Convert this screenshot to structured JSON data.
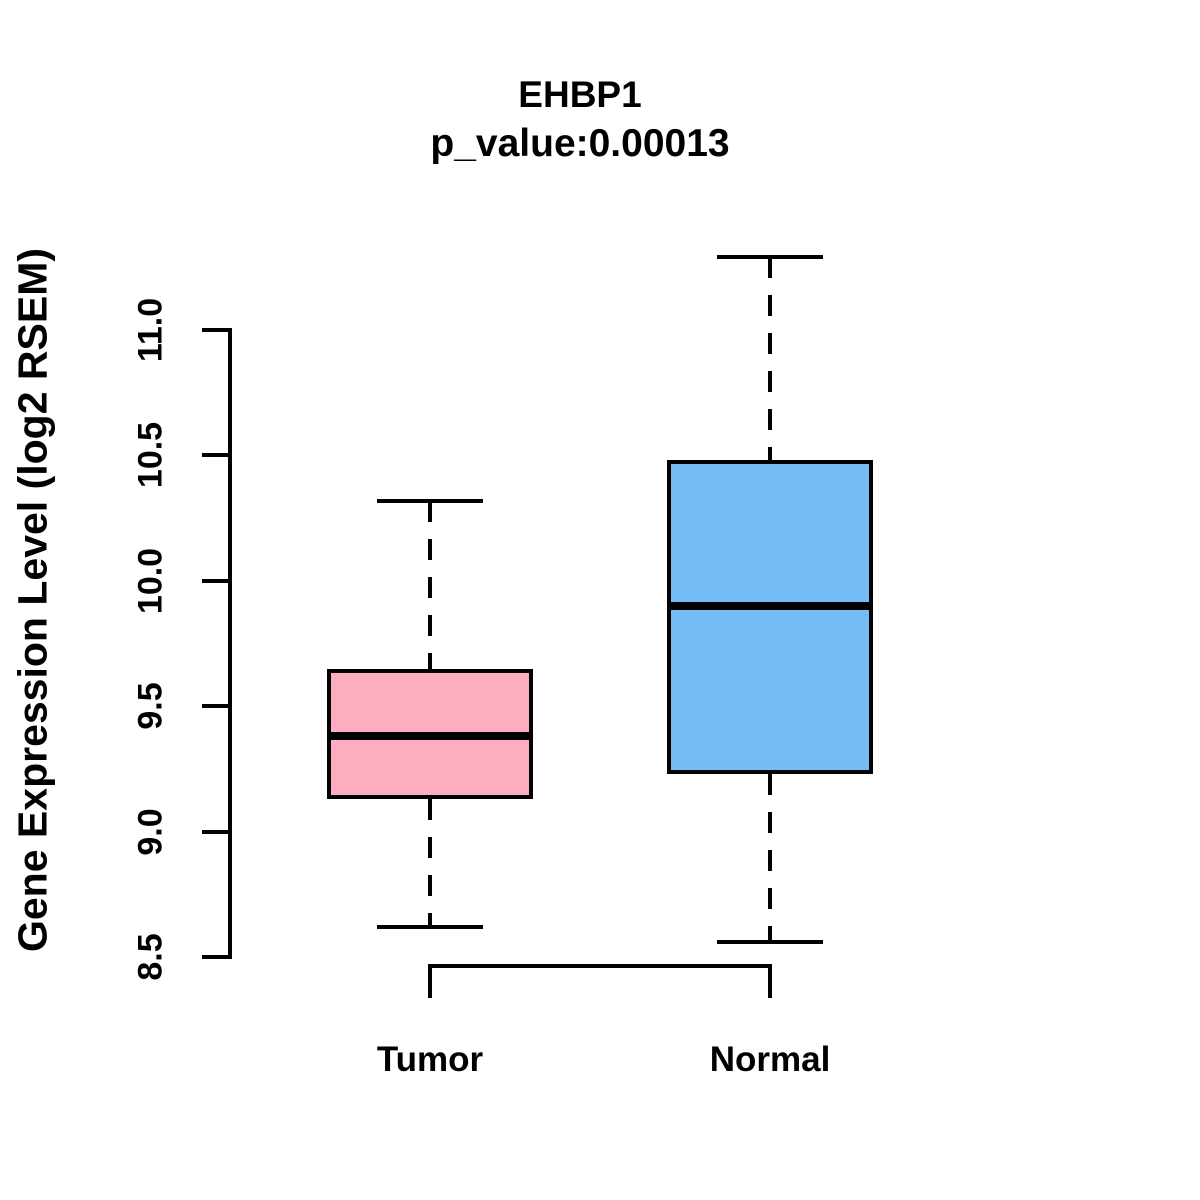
{
  "title": "EHBP1",
  "subtitle": "p_value:0.00013",
  "colors": {
    "background": "#ffffff",
    "stroke": "#000000",
    "tumor_fill": "#FCAEC0",
    "normal_fill": "#74BEF5"
  },
  "chart_data": {
    "type": "boxplot",
    "title": "EHBP1",
    "subtitle": "p_value:0.00013",
    "ylabel": "Gene Expression Level (log2 RSEM)",
    "xlabel": "",
    "categories": [
      "Tumor",
      "Normal"
    ],
    "series": [
      {
        "name": "Tumor",
        "min": 8.62,
        "q1": 9.13,
        "median": 9.38,
        "q3": 9.65,
        "max": 10.32,
        "fill": "#FCAEC0"
      },
      {
        "name": "Normal",
        "min": 8.56,
        "q1": 9.23,
        "median": 9.9,
        "q3": 10.48,
        "max": 11.29,
        "fill": "#74BEF5"
      }
    ],
    "yticks": [
      "8.5",
      "9.0",
      "9.5",
      "10.0",
      "10.5",
      "11.0"
    ],
    "ylim": [
      8.5,
      11.0
    ],
    "grid": false,
    "legend": "none",
    "whisker_style": "dashed"
  }
}
